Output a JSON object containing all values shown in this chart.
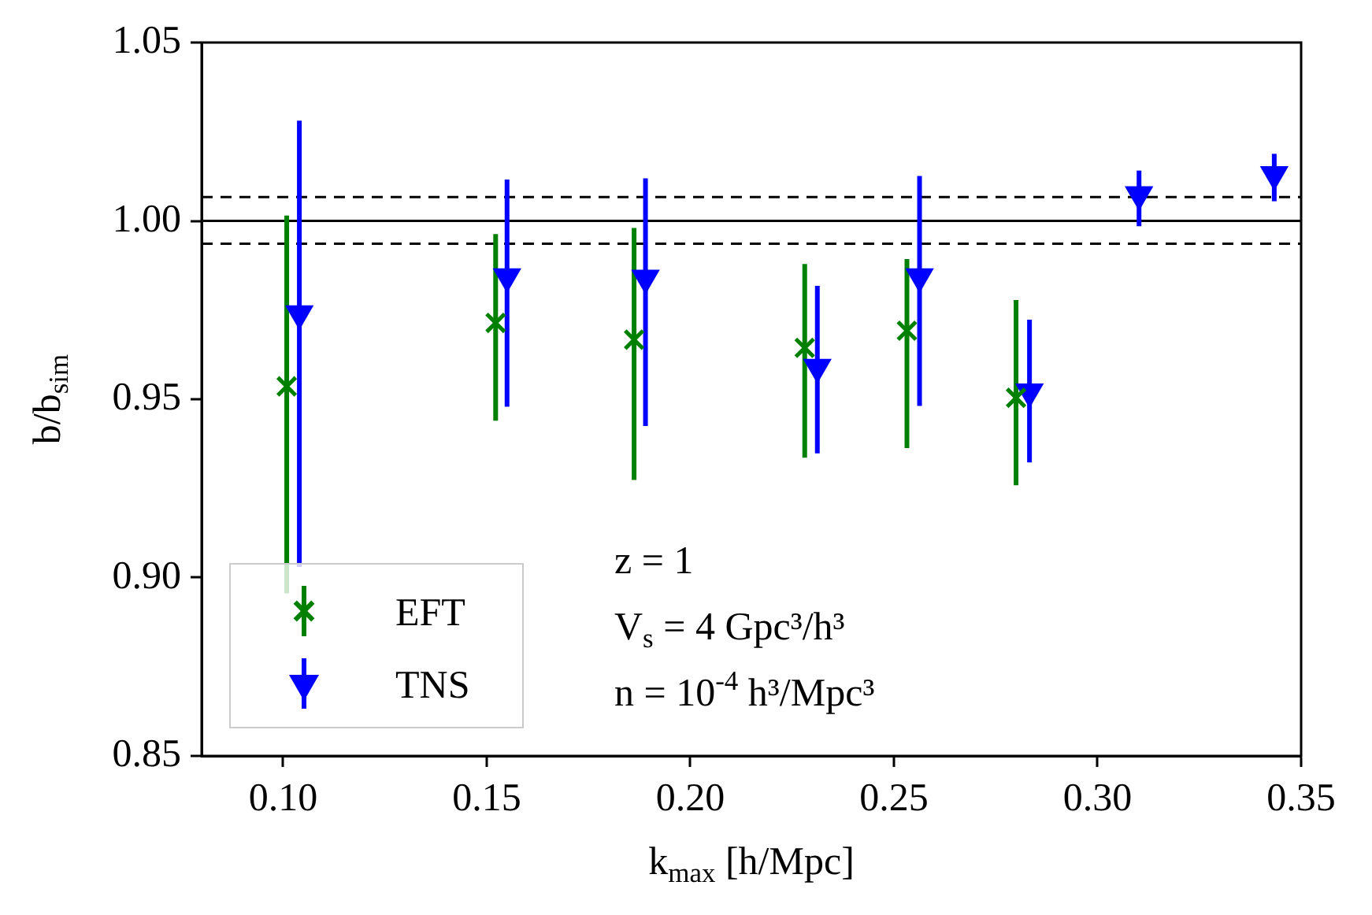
{
  "chart_data": {
    "type": "scatter",
    "xlabel": "k$_{max}$ [h/Mpc]",
    "ylabel": "b/b$_{sim}$",
    "xlim": [
      0.08,
      0.35
    ],
    "xticks": [
      {
        "value": 0.1,
        "label": "0.10"
      },
      0.15,
      {
        "value": 0.2,
        "label": "0.20"
      },
      0.25,
      {
        "value": 0.3,
        "label": "0.30"
      },
      0.35
    ],
    "ylim": [
      0.85,
      1.05
    ],
    "yticks": [
      0.85,
      {
        "value": 0.9,
        "label": "0.90"
      },
      0.95,
      {
        "value": 1,
        "label": "1.00"
      },
      1.05
    ],
    "grid": false,
    "legend": "bottom left",
    "series": [
      {
        "name": "EFT",
        "color": "#008000",
        "marker": "cross",
        "x": [
          0.1009,
          0.1522,
          0.1862,
          0.2281,
          0.2532,
          0.28
        ],
        "values": [
          0.9536,
          0.9714,
          0.9667,
          0.9644,
          0.9692,
          0.9504
        ],
        "errors": [
          [
            0.8956,
            1.0015
          ],
          [
            0.944,
            0.9963
          ],
          [
            0.9274,
            0.998
          ],
          [
            0.9336,
            0.9879
          ],
          [
            0.9363,
            0.9893
          ],
          [
            0.9259,
            0.9778
          ]
        ]
      },
      {
        "name": "TNS",
        "color": "#0000ff",
        "marker": "triangle",
        "x": [
          0.104,
          0.155,
          0.189,
          0.2312,
          0.2563,
          0.2833,
          0.3102,
          0.3434
        ],
        "values": [
          0.974,
          0.9844,
          0.984,
          0.959,
          0.9844,
          0.9521,
          1.0074,
          1.013
        ],
        "errors": [
          [
            0.903,
            1.0281
          ],
          [
            0.9479,
            1.0116
          ],
          [
            0.9425,
            1.0119
          ],
          [
            0.9348,
            0.9818
          ],
          [
            0.9481,
            1.0126
          ],
          [
            0.9323,
            0.9723
          ],
          [
            0.9985,
            1.0141
          ],
          [
            1.0055,
            1.0188
          ]
        ]
      }
    ],
    "ref_lines": [
      {
        "axis": "y",
        "value": 1,
        "line_style": "solid",
        "color": "#000000"
      },
      {
        "axis": "y",
        "value": 1.0067,
        "line_style": "dashed",
        "color": "#000000"
      },
      {
        "axis": "y",
        "value": 0.9936,
        "line_style": "dashed",
        "color": "#000000"
      }
    ],
    "annotations": [
      "z = 1",
      "V$_{s}$ = 4 Gpc³/h³",
      "n = 10$^{-4}$ h³/Mpc³"
    ]
  }
}
